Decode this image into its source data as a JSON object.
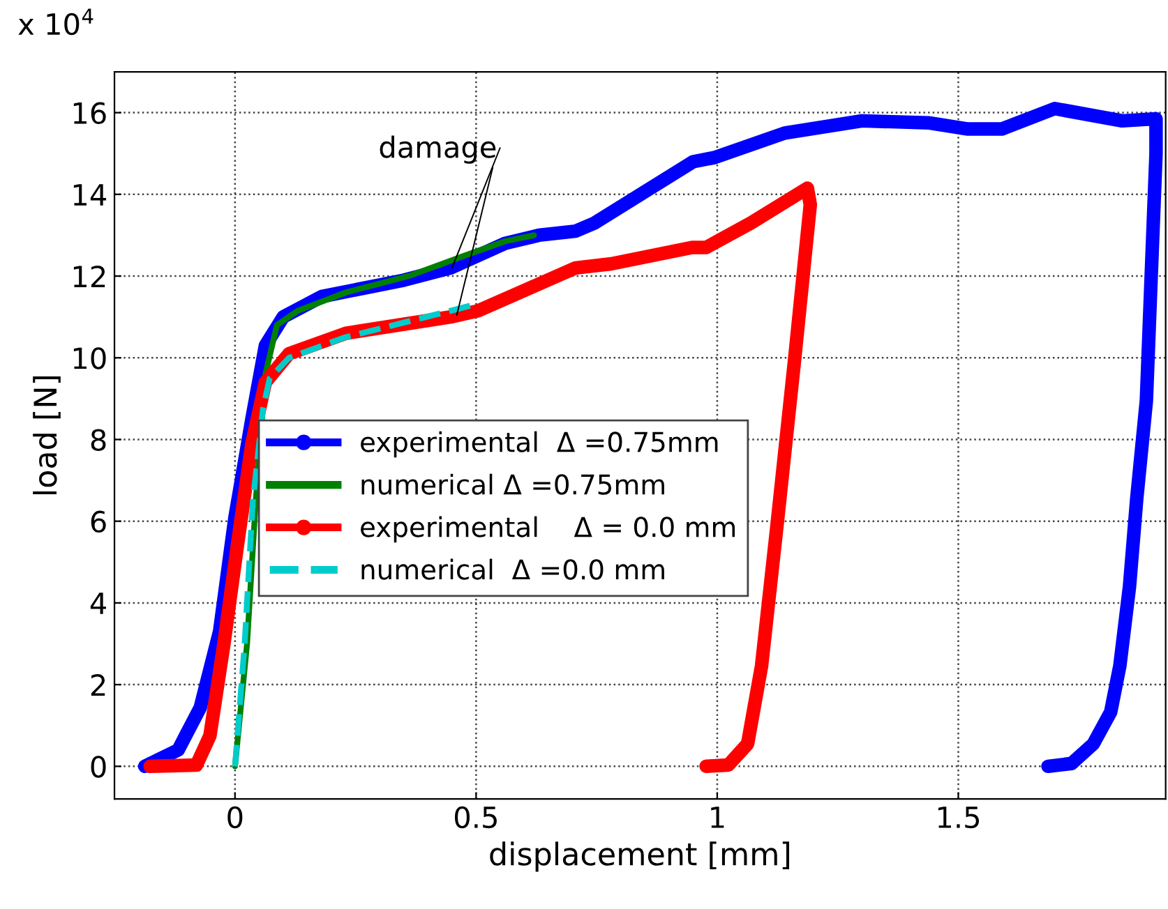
{
  "chart_data": {
    "type": "line",
    "xlabel": "displacement [mm]",
    "ylabel": "load [N]",
    "xlim": [
      -0.25,
      1.93
    ],
    "xticks": [
      0,
      0.5,
      1,
      1.5
    ],
    "ylim": [
      -0.8,
      17
    ],
    "yticks": [
      0,
      2,
      4,
      6,
      8,
      10,
      12,
      14,
      16
    ],
    "grid": true,
    "legend": "center",
    "line_style": "solid",
    "annotations": [
      "x 10$^{4}$",
      {
        "text": "damage",
        "x": 0.46,
        "y": 11.05
      }
    ],
    "series": [
      {
        "name": "experimental  Δ =0.75mm",
        "color": "#0000ff",
        "marker": "circle",
        "x": [
          -0.187,
          -0.118,
          -0.072,
          -0.032,
          0.0,
          0.035,
          0.063,
          0.1,
          0.18,
          0.35,
          0.447,
          0.56,
          0.63,
          0.706,
          0.746,
          0.95,
          0.994,
          1.14,
          1.3,
          1.44,
          1.52,
          1.59,
          1.7,
          1.84,
          1.91,
          1.91,
          1.9,
          1.89,
          1.87,
          1.855,
          1.835,
          1.816,
          1.78,
          1.735,
          1.686
        ],
        "values": [
          0,
          0.4,
          1.44,
          3.3,
          6.1,
          8.5,
          10.3,
          11.0,
          11.5,
          11.9,
          12.2,
          12.8,
          13.0,
          13.1,
          13.3,
          14.8,
          14.9,
          15.5,
          15.8,
          15.75,
          15.6,
          15.6,
          16.1,
          15.8,
          15.85,
          15.0,
          12.0,
          8.95,
          6.55,
          4.4,
          2.46,
          1.33,
          0.55,
          0.07,
          0
        ]
      },
      {
        "name": "numerical Δ =0.75mm",
        "color": "#008000",
        "x": [
          0,
          0.025,
          0.043,
          0.063,
          0.087,
          0.13,
          0.23,
          0.36,
          0.476,
          0.56,
          0.62
        ],
        "values": [
          0,
          3.0,
          6.5,
          9.6,
          10.8,
          11.15,
          11.6,
          12.0,
          12.5,
          12.85,
          13.0
        ]
      },
      {
        "name": "experimental    Δ = 0.0 mm",
        "color": "#ff0000",
        "marker": "circle",
        "x": [
          -0.176,
          -0.08,
          -0.052,
          -0.023,
          0.006,
          0.035,
          0.063,
          0.112,
          0.23,
          0.447,
          0.504,
          0.61,
          0.706,
          0.78,
          0.948,
          0.977,
          1.07,
          1.187,
          1.193,
          1.16,
          1.124,
          1.092,
          1.063,
          1.023,
          0.977
        ],
        "values": [
          0,
          0.03,
          0.75,
          3.0,
          5.5,
          7.9,
          9.4,
          10.1,
          10.6,
          11.0,
          11.15,
          11.7,
          12.2,
          12.3,
          12.7,
          12.7,
          13.3,
          14.15,
          13.75,
          9.9,
          5.9,
          2.46,
          0.55,
          0.03,
          0
        ]
      },
      {
        "name": "numerical  Δ =0.0 mm",
        "color": "#00cccc",
        "line_style": "dashed",
        "x": [
          0,
          0.02,
          0.037,
          0.058,
          0.072,
          0.112,
          0.228,
          0.447,
          0.496
        ],
        "values": [
          0,
          3.0,
          6.5,
          8.75,
          9.5,
          10.0,
          10.5,
          11.15,
          11.3
        ]
      }
    ]
  }
}
